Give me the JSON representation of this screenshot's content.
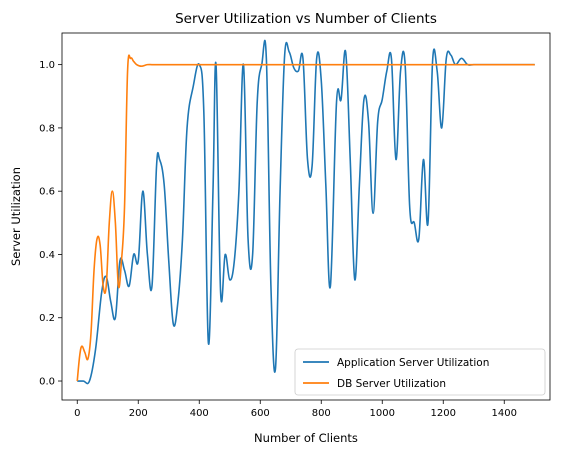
{
  "chart_data": {
    "type": "line",
    "title": "Server Utilization vs Number of Clients",
    "xlabel": "Number of Clients",
    "ylabel": "Server Utilization",
    "xlim": [
      -50,
      1550
    ],
    "ylim": [
      -0.06,
      1.1
    ],
    "xticks": [
      0,
      200,
      400,
      600,
      800,
      1000,
      1200,
      1400
    ],
    "yticks": [
      0.0,
      0.2,
      0.4,
      0.6,
      0.8,
      1.0
    ],
    "grid": false,
    "legend_position": "lower-right",
    "series": [
      {
        "name": "Application Server Utilization",
        "color": "#1f77b4",
        "x": [
          0,
          20,
          40,
          60,
          80,
          95,
          110,
          125,
          140,
          155,
          170,
          185,
          200,
          215,
          230,
          245,
          260,
          270,
          285,
          300,
          315,
          330,
          345,
          360,
          380,
          400,
          415,
          430,
          445,
          455,
          470,
          485,
          500,
          515,
          530,
          545,
          560,
          575,
          590,
          605,
          620,
          635,
          650,
          665,
          680,
          695,
          710,
          725,
          740,
          755,
          770,
          785,
          800,
          815,
          830,
          850,
          865,
          880,
          895,
          910,
          925,
          940,
          955,
          970,
          985,
          1000,
          1015,
          1030,
          1045,
          1060,
          1075,
          1090,
          1105,
          1120,
          1135,
          1150,
          1165,
          1180,
          1195,
          1210,
          1225,
          1240,
          1260,
          1280,
          1300,
          1350,
          1400,
          1450,
          1500
        ],
        "y": [
          0.0,
          0.0,
          0.0,
          0.1,
          0.28,
          0.33,
          0.25,
          0.2,
          0.38,
          0.35,
          0.3,
          0.4,
          0.38,
          0.6,
          0.4,
          0.3,
          0.68,
          0.7,
          0.62,
          0.38,
          0.18,
          0.25,
          0.45,
          0.8,
          0.93,
          1.0,
          0.85,
          0.12,
          0.6,
          1.0,
          0.28,
          0.4,
          0.32,
          0.38,
          0.6,
          1.0,
          0.45,
          0.4,
          0.88,
          1.0,
          1.02,
          0.3,
          0.04,
          0.6,
          1.03,
          1.04,
          0.99,
          0.98,
          1.02,
          0.7,
          0.68,
          1.02,
          0.95,
          0.62,
          0.3,
          0.88,
          0.89,
          1.04,
          0.7,
          0.32,
          0.62,
          0.89,
          0.82,
          0.53,
          0.82,
          0.89,
          0.98,
          1.02,
          0.7,
          0.98,
          1.0,
          0.55,
          0.5,
          0.45,
          0.7,
          0.5,
          1.01,
          0.98,
          0.8,
          1.02,
          1.03,
          1.0,
          1.02,
          1.0,
          1.0,
          1.0,
          1.0,
          1.0,
          1.0
        ]
      },
      {
        "name": "DB Server Utilization",
        "color": "#ff7f0e",
        "x": [
          0,
          8,
          15,
          25,
          35,
          45,
          55,
          65,
          75,
          85,
          95,
          105,
          115,
          125,
          135,
          145,
          155,
          165,
          175,
          185,
          195,
          210,
          230,
          250,
          300,
          400,
          500,
          600,
          700,
          800,
          900,
          1000,
          1100,
          1200,
          1300,
          1400,
          1500
        ],
        "y": [
          0.0,
          0.08,
          0.11,
          0.09,
          0.07,
          0.15,
          0.35,
          0.45,
          0.43,
          0.3,
          0.3,
          0.5,
          0.6,
          0.5,
          0.3,
          0.38,
          0.55,
          0.98,
          1.02,
          1.01,
          1.0,
          0.995,
          1.0,
          1.0,
          1.0,
          1.0,
          1.0,
          1.0,
          1.0,
          1.0,
          1.0,
          1.0,
          1.0,
          1.0,
          1.0,
          1.0,
          1.0
        ]
      }
    ]
  }
}
